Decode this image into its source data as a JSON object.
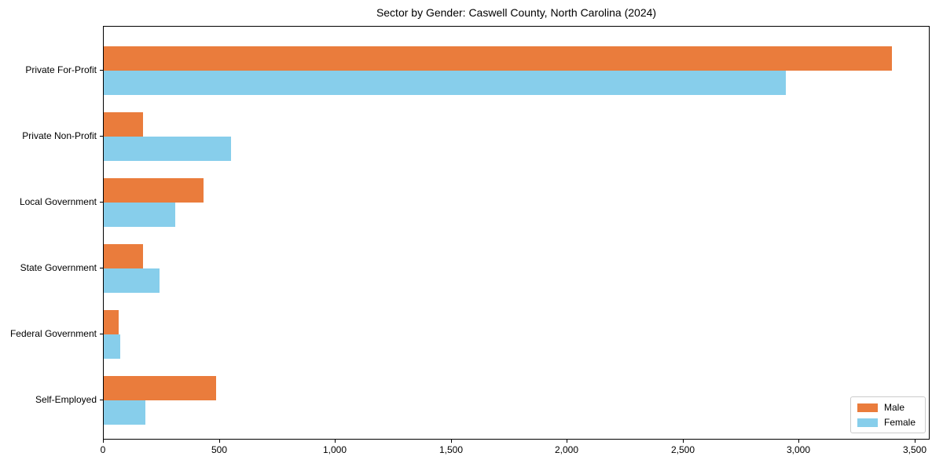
{
  "chart_data": {
    "type": "bar",
    "orientation": "horizontal",
    "title": "Sector by Gender: Caswell County, North Carolina (2024)",
    "categories": [
      "Private For-Profit",
      "Private Non-Profit",
      "Local Government",
      "State Government",
      "Federal Government",
      "Self-Employed"
    ],
    "series": [
      {
        "name": "Male",
        "color": "#ea7c3c",
        "values": [
          3400,
          170,
          430,
          170,
          65,
          485
        ]
      },
      {
        "name": "Female",
        "color": "#87ceeb",
        "values": [
          2940,
          550,
          310,
          240,
          70,
          180
        ]
      }
    ],
    "xlabel": "",
    "ylabel": "",
    "xlim": [
      0,
      3565
    ],
    "xticks": [
      {
        "value": 0,
        "label": "0"
      },
      {
        "value": 500,
        "label": "500"
      },
      {
        "value": 1000,
        "label": "1,000"
      },
      {
        "value": 1500,
        "label": "1,500"
      },
      {
        "value": 2000,
        "label": "2,000"
      },
      {
        "value": 2500,
        "label": "2,500"
      },
      {
        "value": 3000,
        "label": "3,000"
      },
      {
        "value": 3500,
        "label": "3,500"
      }
    ],
    "grid": false,
    "legend": {
      "position": "lower-right",
      "items": [
        "Male",
        "Female"
      ]
    },
    "axis_color": "#000000",
    "background_color": "#ffffff"
  }
}
